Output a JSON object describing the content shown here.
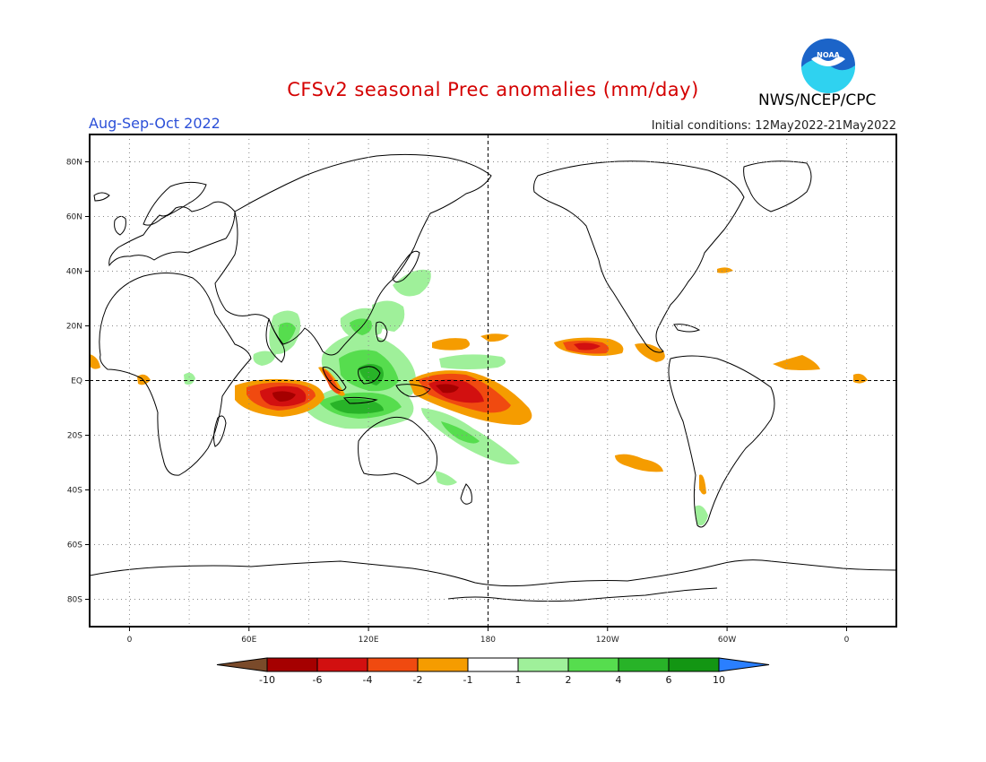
{
  "header": {
    "title": "CFSv2 seasonal Prec anomalies (mm/day)",
    "season": "Aug-Sep-Oct 2022",
    "initial_conditions": "Initial conditions: 12May2022-21May2022",
    "agency": "NWS/NCEP/CPC",
    "logo_text": "NOAA"
  },
  "map": {
    "projection": "cylindrical-equidistant",
    "lon_range": [
      -20,
      385
    ],
    "lat_range": [
      -90,
      90
    ],
    "lat_labels": [
      {
        "lat": 80,
        "text": "80N"
      },
      {
        "lat": 60,
        "text": "60N"
      },
      {
        "lat": 40,
        "text": "40N"
      },
      {
        "lat": 20,
        "text": "20N"
      },
      {
        "lat": 0,
        "text": "EQ"
      },
      {
        "lat": -20,
        "text": "20S"
      },
      {
        "lat": -40,
        "text": "40S"
      },
      {
        "lat": -60,
        "text": "60S"
      },
      {
        "lat": -80,
        "text": "80S"
      }
    ],
    "lon_labels": [
      {
        "lon": 0,
        "text": "0"
      },
      {
        "lon": 60,
        "text": "60E"
      },
      {
        "lon": 120,
        "text": "120E"
      },
      {
        "lon": 180,
        "text": "180"
      },
      {
        "lon": 240,
        "text": "120W"
      },
      {
        "lon": 300,
        "text": "60W"
      },
      {
        "lon": 360,
        "text": "0"
      }
    ],
    "grid": "dotted",
    "reference_lines": [
      "equator",
      "dateline"
    ]
  },
  "colorbar": {
    "colors": [
      "#7a4a2a",
      "#a50000",
      "#d21010",
      "#f04a10",
      "#f59c00",
      "#ffffff",
      "#9ff09a",
      "#56dd4e",
      "#28b328",
      "#139613",
      "#2a7fff"
    ],
    "labels": [
      "-10",
      "-6",
      "-4",
      "-2",
      "-1",
      "1",
      "2",
      "4",
      "6",
      "10"
    ]
  },
  "colors": {
    "dry_strong": "#a50000",
    "dry_mod": "#d21010",
    "dry": "#f04a10",
    "dry_weak": "#f59c00",
    "wet_weak": "#9ff09a",
    "wet": "#56dd4e",
    "wet_mod": "#28b328",
    "wet_strong": "#139613"
  }
}
